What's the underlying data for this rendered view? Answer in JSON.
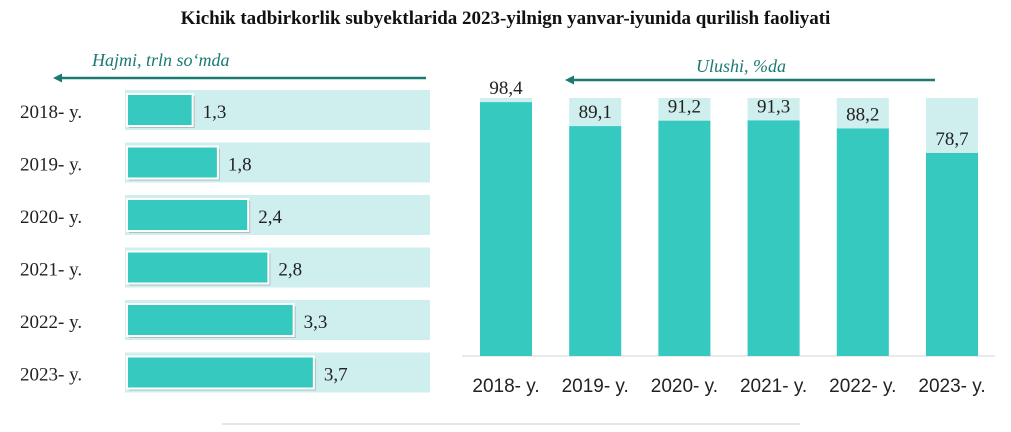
{
  "title": "Kichik tadbirkorlik subyektlarida 2023-yilnign yanvar-iyunida qurilish faoliyati",
  "colors": {
    "bar": "#36c9c0",
    "bar_track": "#cfeeee",
    "arrow": "#1a7a72",
    "text": "#222222",
    "subtitle": "#1a7a72"
  },
  "chart_data": [
    {
      "type": "bar",
      "orientation": "horizontal",
      "subtitle": "Hajmi, trln so‘mda",
      "categories": [
        "2018- y.",
        "2019- y.",
        "2020- y.",
        "2021- y.",
        "2022- y.",
        "2023- y."
      ],
      "values": [
        1.3,
        1.8,
        2.4,
        2.8,
        3.3,
        3.7
      ],
      "value_labels": [
        "1,3",
        "1,8",
        "2,4",
        "2,8",
        "3,3",
        "3,7"
      ],
      "xlim": [
        0,
        6.0
      ]
    },
    {
      "type": "bar",
      "orientation": "vertical",
      "subtitle": "Ulushi, %da",
      "categories": [
        "2018- y.",
        "2019- y.",
        "2020- y.",
        "2021- y.",
        "2022- y.",
        "2023- y."
      ],
      "values": [
        98.4,
        89.1,
        91.2,
        91.3,
        88.2,
        78.7
      ],
      "value_labels": [
        "98,4",
        "89,1",
        "91,2",
        "91,3",
        "88,2",
        "78,7"
      ],
      "ylim": [
        0,
        100
      ]
    }
  ]
}
